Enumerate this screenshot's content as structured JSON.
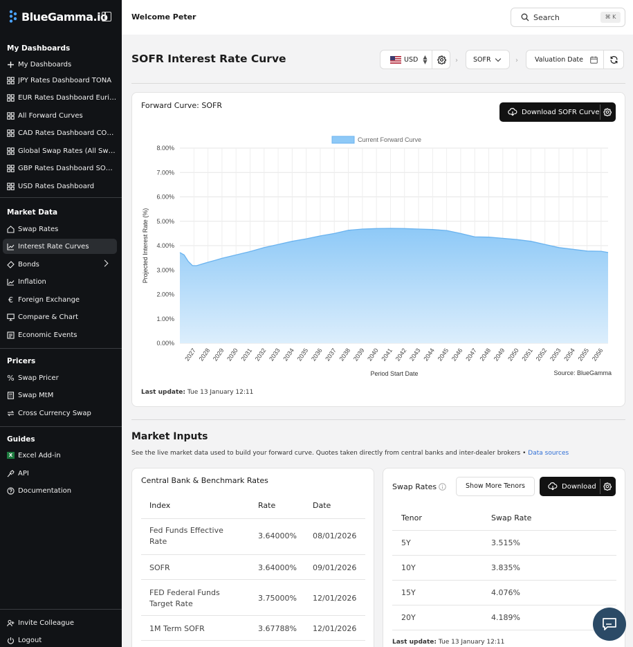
{
  "app": {
    "name": "BlueGamma.io"
  },
  "sidebar": {
    "sections": {
      "dashboards": "My Dashboards",
      "market": "Market Data",
      "pricers": "Pricers",
      "guides": "Guides"
    },
    "dashboards": [
      {
        "label": "My Dashboards",
        "icon": "plus-icon"
      },
      {
        "label": "JPY Rates Dashboard TONA",
        "icon": "dashboard-icon"
      },
      {
        "label": "EUR Rates Dashboard Euribor",
        "icon": "dashboard-icon"
      },
      {
        "label": "All Forward Curves",
        "icon": "dashboard-icon"
      },
      {
        "label": "CAD Rates Dashboard CORRA",
        "icon": "dashboard-icon"
      },
      {
        "label": "Global Swap Rates (All Swap Rates)",
        "icon": "dashboard-icon"
      },
      {
        "label": "GBP Rates Dashboard SONIA",
        "icon": "dashboard-icon"
      },
      {
        "label": "USD Rates Dashboard",
        "icon": "dashboard-icon"
      }
    ],
    "market": [
      {
        "label": "Swap Rates",
        "icon": "home-icon"
      },
      {
        "label": "Interest Rate Curves",
        "icon": "chart-line-icon"
      },
      {
        "label": "Bonds",
        "icon": "bonds-icon"
      },
      {
        "label": "Inflation",
        "icon": "trend-icon"
      },
      {
        "label": "Foreign Exchange",
        "icon": "euro-icon"
      },
      {
        "label": "Compare & Chart",
        "icon": "monitor-icon"
      },
      {
        "label": "Economic Events",
        "icon": "newspaper-icon"
      }
    ],
    "pricers": [
      {
        "label": "Swap Pricer",
        "icon": "percent-icon"
      },
      {
        "label": "Swap MtM",
        "icon": "calculator-icon"
      },
      {
        "label": "Cross Currency Swap",
        "icon": "swap-arrows-icon"
      }
    ],
    "guides": [
      {
        "label": "Excel Add-in",
        "icon": "excel-icon"
      },
      {
        "label": "API",
        "icon": "plug-icon"
      },
      {
        "label": "Documentation",
        "icon": "help-circle-icon"
      }
    ],
    "bottom": [
      {
        "label": "Invite Colleague",
        "icon": "user-plus-icon"
      },
      {
        "label": "Logout",
        "icon": "power-icon"
      }
    ]
  },
  "topbar": {
    "welcome": "Welcome Peter",
    "search_label": "Search",
    "search_shortcut": "⌘ K"
  },
  "header": {
    "title": "SOFR Interest Rate Curve",
    "currency": "USD",
    "index": "SOFR",
    "valuation_date_label": "Valuation Date"
  },
  "forward_card": {
    "title": "Forward Curve: SOFR",
    "download_label": "Download SOFR Curve",
    "last_update_label": "Last update:",
    "last_update_value": "Tue 13 January 12:11"
  },
  "chart_data": {
    "type": "area",
    "title": "",
    "legend": [
      "Current Forward Curve"
    ],
    "legend_position": "top",
    "xlabel": "Period Start Date",
    "ylabel": "Projected Interest Rate (%)",
    "source_note": "Source: BlueGamma",
    "ylim": [
      0,
      8
    ],
    "yticks": [
      "0.00%",
      "1.00%",
      "2.00%",
      "3.00%",
      "4.00%",
      "5.00%",
      "6.00%",
      "7.00%",
      "8.00%"
    ],
    "xticks": [
      "2027",
      "2028",
      "2029",
      "2030",
      "2031",
      "2032",
      "2033",
      "2034",
      "2035",
      "2036",
      "2037",
      "2038",
      "2039",
      "2040",
      "2041",
      "2042",
      "2043",
      "2044",
      "2045",
      "2046",
      "2047",
      "2048",
      "2049",
      "2050",
      "2051",
      "2052",
      "2053",
      "2054",
      "2055",
      "2056"
    ],
    "grid": true,
    "fill_color": "#8ec9f7",
    "line_color": "#6ab3ef",
    "series": [
      {
        "name": "Current Forward Curve",
        "x": [
          2026.0,
          2026.3,
          2026.6,
          2026.9,
          2027.2,
          2027.6,
          2028.0,
          2028.5,
          2029.0,
          2030.0,
          2031.0,
          2032.0,
          2033.0,
          2034.0,
          2035.0,
          2036.0,
          2037.0,
          2038.0,
          2039.0,
          2040.0,
          2041.0,
          2042.0,
          2043.0,
          2044.0,
          2045.0,
          2046.0,
          2047.0,
          2048.0,
          2049.0,
          2050.0,
          2051.0,
          2052.0,
          2053.0,
          2054.0,
          2055.0,
          2056.0,
          2056.5
        ],
        "y": [
          3.72,
          3.62,
          3.35,
          3.18,
          3.18,
          3.25,
          3.32,
          3.4,
          3.48,
          3.62,
          3.76,
          3.92,
          4.05,
          4.18,
          4.28,
          4.4,
          4.5,
          4.63,
          4.68,
          4.7,
          4.71,
          4.7,
          4.68,
          4.66,
          4.62,
          4.5,
          4.36,
          4.35,
          4.3,
          4.25,
          4.18,
          4.05,
          3.92,
          3.85,
          3.78,
          3.77,
          3.72
        ]
      }
    ]
  },
  "market_inputs": {
    "title": "Market Inputs",
    "description": "See the live market data used to build your forward curve. Quotes taken directly from central banks and inter-dealer brokers •",
    "link": "Data sources"
  },
  "central_bank": {
    "title": "Central Bank & Benchmark Rates",
    "columns": [
      "Index",
      "Rate",
      "Date"
    ],
    "rows": [
      [
        "Fed Funds Effective Rate",
        "3.64000%",
        "08/01/2026"
      ],
      [
        "SOFR",
        "3.64000%",
        "09/01/2026"
      ],
      [
        "FED Federal Funds Target Rate",
        "3.75000%",
        "12/01/2026"
      ],
      [
        "1M Term SOFR",
        "3.67788%",
        "12/01/2026"
      ]
    ]
  },
  "swap_rates": {
    "title": "Swap Rates",
    "more_label": "Show More Tenors",
    "download_label": "Download",
    "columns": [
      "Tenor",
      "Swap Rate"
    ],
    "rows": [
      [
        "5Y",
        "3.515%"
      ],
      [
        "10Y",
        "3.835%"
      ],
      [
        "15Y",
        "4.076%"
      ],
      [
        "20Y",
        "4.189%"
      ]
    ],
    "last_update_label": "Last update:",
    "last_update_value": "Tue 13 January 12:11"
  }
}
